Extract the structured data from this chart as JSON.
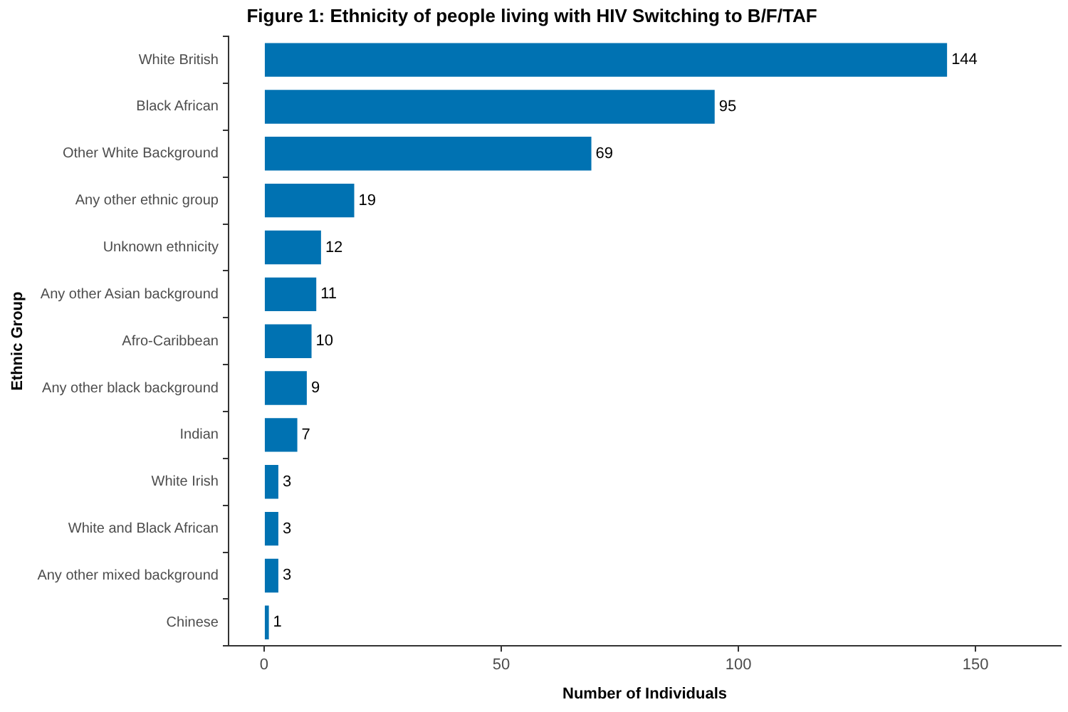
{
  "chart_data": {
    "type": "bar",
    "orientation": "horizontal",
    "title": "Figure 1: Ethnicity of people living with HIV Switching to B/F/TAF",
    "xlabel": "Number of Individuals",
    "ylabel": "Ethnic Group",
    "categories": [
      "White British",
      "Black African",
      "Other White Background",
      "Any other ethnic group",
      "Unknown ethnicity",
      "Any other Asian background",
      "Afro-Caribbean",
      "Any other black background",
      "Indian",
      "White Irish",
      "White and Black African",
      "Any other mixed background",
      "Chinese"
    ],
    "values": [
      144,
      95,
      69,
      19,
      12,
      11,
      10,
      9,
      7,
      3,
      3,
      3,
      1
    ],
    "color": "#0072b2",
    "xlim": [
      -7.5,
      168
    ],
    "xticks": [
      0,
      50,
      100,
      150
    ],
    "grid": false,
    "legend": false,
    "data_labels": true
  }
}
